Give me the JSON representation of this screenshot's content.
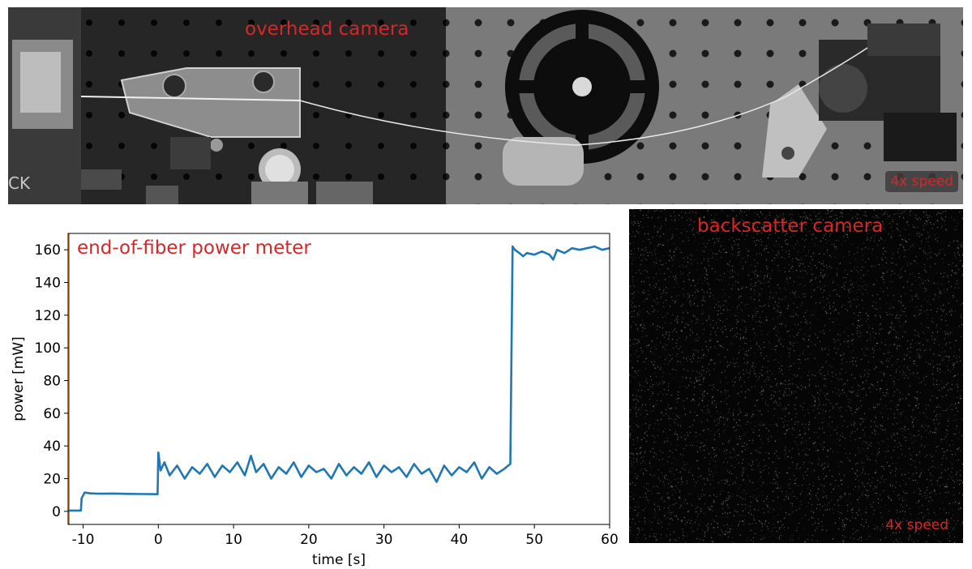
{
  "overhead": {
    "title": "overhead camera",
    "speed": "4x speed",
    "edge_text": "CK"
  },
  "backscatter": {
    "title": "backscatter camera",
    "speed": "4x speed"
  },
  "chart_data": {
    "type": "line",
    "annotation": "end-of-fiber power meter",
    "xlabel": "time [s]",
    "ylabel": "power [mW]",
    "xlim": [
      -12,
      60
    ],
    "ylim": [
      -8,
      170
    ],
    "xticks": [
      -10,
      0,
      10,
      20,
      30,
      40,
      50,
      60
    ],
    "yticks": [
      0,
      20,
      40,
      60,
      80,
      100,
      120,
      140,
      160
    ],
    "grid": false,
    "series": [
      {
        "color": "#1f77b4",
        "x": [
          -12,
          -10.3,
          -10.2,
          -9.8,
          -9.0,
          -8.0,
          -6.0,
          -4.0,
          -2.0,
          -0.1,
          0.0,
          0.3,
          0.8,
          1.5,
          2.5,
          3.5,
          4.5,
          5.5,
          6.5,
          7.5,
          8.5,
          9.5,
          10.5,
          11.5,
          12.3,
          13.0,
          14.0,
          15.0,
          16.0,
          17.0,
          18.0,
          19.0,
          20.0,
          21.0,
          22.0,
          23.0,
          24.0,
          25.0,
          26.0,
          27.0,
          28.0,
          29.0,
          30.0,
          31.0,
          32.0,
          33.0,
          34.0,
          35.0,
          36.0,
          37.0,
          38.0,
          39.0,
          40.0,
          41.0,
          42.0,
          43.0,
          44.0,
          45.0,
          46.0,
          46.8,
          47.1,
          47.4,
          48.0,
          48.5,
          49.0,
          50.0,
          51.0,
          52.0,
          52.5,
          53.0,
          54.0,
          55.0,
          56.0,
          57.0,
          58.0,
          59.0,
          60.0
        ],
        "y": [
          0.5,
          0.5,
          8.0,
          11.5,
          11.0,
          10.8,
          10.9,
          10.7,
          10.6,
          10.5,
          36.0,
          25.0,
          30.0,
          22.0,
          28.0,
          20.0,
          27.0,
          23.0,
          29.0,
          21.0,
          28.0,
          24.0,
          30.0,
          22.0,
          34.0,
          24.0,
          29.0,
          20.0,
          27.0,
          23.0,
          30.0,
          21.0,
          28.0,
          24.0,
          26.0,
          20.0,
          29.0,
          22.0,
          27.0,
          23.0,
          30.0,
          21.0,
          28.0,
          24.0,
          27.0,
          21.0,
          29.0,
          23.0,
          26.0,
          18.0,
          28.0,
          22.0,
          27.0,
          24.0,
          30.0,
          20.0,
          27.0,
          23.0,
          26.0,
          29.0,
          162.0,
          160.0,
          158.0,
          156.0,
          158.0,
          157.0,
          159.0,
          157.0,
          154.0,
          160.0,
          158.0,
          161.0,
          160.0,
          161.0,
          162.0,
          160.0,
          161.0
        ]
      }
    ],
    "marker": {
      "x": -12,
      "color": "#ff7f0e"
    }
  }
}
